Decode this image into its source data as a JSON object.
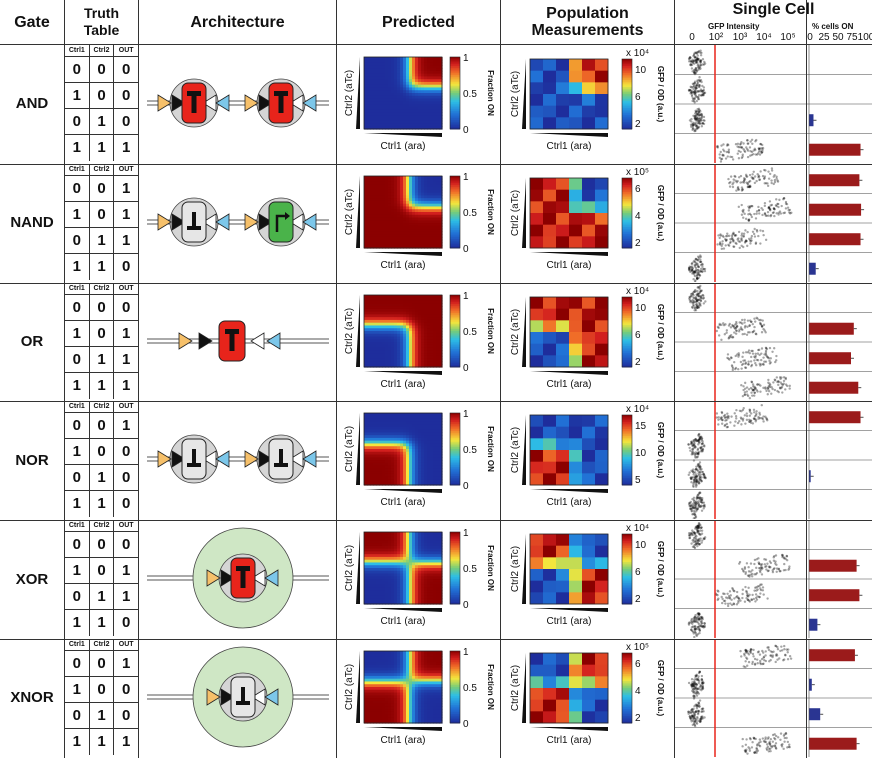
{
  "headers": {
    "gate": "Gate",
    "truth_table": "Truth Table",
    "architecture": "Architecture",
    "predicted": "Predicted",
    "population": "Population Measurements",
    "single_cell": "Single Cell"
  },
  "single_cell": {
    "gfp_label": "GFP Intensity",
    "pct_label": "% cells ON",
    "gfp_ticks": [
      "0",
      "10²",
      "10³",
      "10⁴",
      "10⁵"
    ],
    "pct_ticks": [
      "0",
      "25",
      "50",
      "75",
      "100"
    ]
  },
  "truth_table_header": [
    "Ctrl1",
    "Ctrl2",
    "OUT"
  ],
  "axes": {
    "x_label": "Ctrl1 (ara)",
    "y_label": "Ctrl2 (aTc)",
    "predicted_cb_label": "Fraction ON",
    "predicted_cb_ticks": [
      "1",
      "0.5",
      "0"
    ],
    "population_cb_label": "GFP / OD (a.u.)"
  },
  "colors": {
    "high": "#8b0000",
    "low": "#1e2d9c",
    "repressor_red": "#e8241b",
    "repressor_gray": "#e6e6e6",
    "activator_green": "#4ab34a",
    "halo_green": "#cfe7c5",
    "promoter_orange": "#f6c06a",
    "promoter_blue": "#7cc7ea",
    "threshold_line": "#e8241b",
    "bar_red": "#9b1b1b",
    "bar_blue": "#2a3592"
  },
  "gates": [
    {
      "name": "AND",
      "rows": [
        [
          "0",
          "0",
          "0"
        ],
        [
          "1",
          "0",
          "0"
        ],
        [
          "0",
          "1",
          "0"
        ],
        [
          "1",
          "1",
          "1"
        ]
      ],
      "architecture": {
        "halo": false,
        "parts": [
          "red-T",
          "red-T"
        ]
      },
      "pop_scale": "x 10⁴",
      "pop_ticks": [
        "10",
        "6",
        "2"
      ],
      "pct_on": [
        0,
        0,
        8,
        92
      ]
    },
    {
      "name": "NAND",
      "rows": [
        [
          "0",
          "0",
          "1"
        ],
        [
          "1",
          "0",
          "1"
        ],
        [
          "0",
          "1",
          "1"
        ],
        [
          "1",
          "1",
          "0"
        ]
      ],
      "architecture": {
        "halo": false,
        "parts": [
          "gray-T",
          "green-arrow"
        ]
      },
      "pop_scale": "x 10⁵",
      "pop_ticks": [
        "6",
        "4",
        "2"
      ],
      "pct_on": [
        90,
        93,
        92,
        12
      ]
    },
    {
      "name": "OR",
      "rows": [
        [
          "0",
          "0",
          "0"
        ],
        [
          "1",
          "0",
          "1"
        ],
        [
          "0",
          "1",
          "1"
        ],
        [
          "1",
          "1",
          "1"
        ]
      ],
      "architecture": {
        "halo": false,
        "parts": [
          "red-T"
        ]
      },
      "pop_scale": "x 10⁴",
      "pop_ticks": [
        "10",
        "6",
        "2"
      ],
      "pct_on": [
        0,
        80,
        75,
        88
      ]
    },
    {
      "name": "NOR",
      "rows": [
        [
          "0",
          "0",
          "1"
        ],
        [
          "1",
          "0",
          "0"
        ],
        [
          "0",
          "1",
          "0"
        ],
        [
          "1",
          "1",
          "0"
        ]
      ],
      "architecture": {
        "halo": false,
        "parts": [
          "gray-T",
          "gray-T"
        ]
      },
      "pop_scale": "x 10⁴",
      "pop_ticks": [
        "15",
        "10",
        "5"
      ],
      "pct_on": [
        92,
        0,
        3,
        0
      ]
    },
    {
      "name": "XOR",
      "rows": [
        [
          "0",
          "0",
          "0"
        ],
        [
          "1",
          "0",
          "1"
        ],
        [
          "0",
          "1",
          "1"
        ],
        [
          "1",
          "1",
          "0"
        ]
      ],
      "architecture": {
        "halo": true,
        "parts": [
          "red-T"
        ]
      },
      "pop_scale": "x 10⁴",
      "pop_ticks": [
        "10",
        "6",
        "2"
      ],
      "pct_on": [
        0,
        85,
        90,
        15
      ]
    },
    {
      "name": "XNOR",
      "rows": [
        [
          "0",
          "0",
          "1"
        ],
        [
          "1",
          "0",
          "0"
        ],
        [
          "0",
          "1",
          "0"
        ],
        [
          "1",
          "1",
          "1"
        ]
      ],
      "architecture": {
        "halo": true,
        "parts": [
          "gray-T"
        ]
      },
      "pop_scale": "x 10⁵",
      "pop_ticks": [
        "6",
        "4",
        "2"
      ],
      "pct_on": [
        82,
        5,
        20,
        85
      ]
    }
  ]
}
